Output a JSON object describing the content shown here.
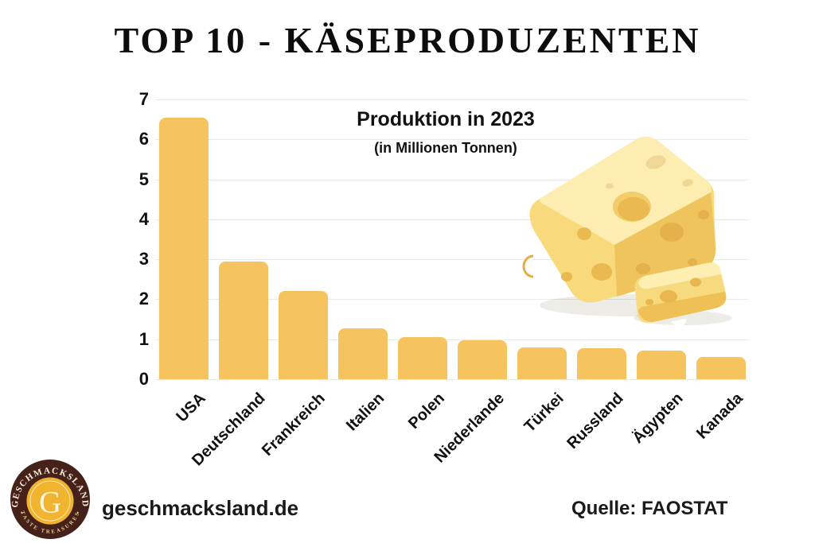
{
  "page": {
    "title": "TOP 10 - KÄSEPRODUZENTEN",
    "background_color": "#ffffff"
  },
  "chart_data": {
    "type": "bar",
    "title": "Produktion in 2023",
    "subtitle": "(in Millionen Tonnen)",
    "categories": [
      "USA",
      "Deutschland",
      "Frankreich",
      "Italien",
      "Polen",
      "Niederlande",
      "Türkei",
      "Russland",
      "Ägypten",
      "Kanada"
    ],
    "values": [
      6.55,
      2.95,
      2.2,
      1.28,
      1.05,
      0.98,
      0.8,
      0.78,
      0.72,
      0.55
    ],
    "ylim": [
      0,
      7
    ],
    "yticks": [
      0,
      1,
      2,
      3,
      4,
      5,
      6,
      7
    ],
    "grid": true,
    "legend": "none",
    "bar_color": "#f6c45e",
    "gridline_color": "#e9e9e9",
    "xlabel": "",
    "ylabel": ""
  },
  "illustration": {
    "name": "cheese-wedge-with-slice",
    "body_color": "#f8d97c",
    "top_color": "#fdedb0",
    "side_color": "#f0c45c",
    "hole_color": "#e9b950"
  },
  "logo": {
    "brand": "GESCHMACKSLAND",
    "tagline": "TASTE TREASURES",
    "monogram": "G",
    "decor_star": "✦",
    "bg_color": "#46211a",
    "disc_color": "#f0b42e",
    "text_color": "#f6ecd5"
  },
  "footer": {
    "website": "geschmacksland.de",
    "source": "Quelle: FAOSTAT"
  }
}
